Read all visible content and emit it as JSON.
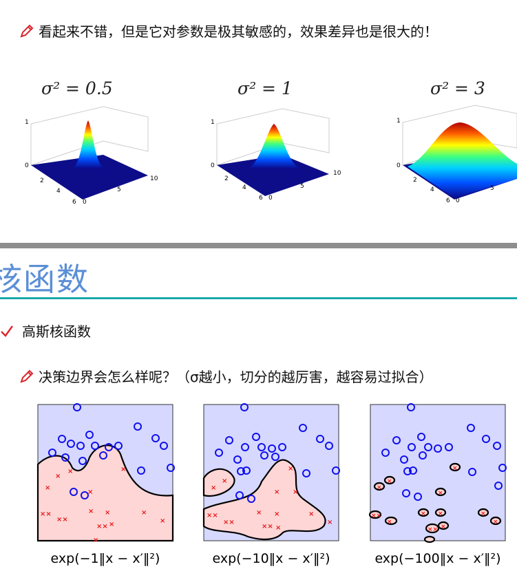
{
  "top_note": "看起来不错，但是它对参数是极其敏感的，效果差异也是很大的！",
  "gaussians": [
    {
      "label": "σ² = 0.5",
      "sigma2": 0.5
    },
    {
      "label": "σ² = 1",
      "sigma2": 1
    },
    {
      "label": "σ² = 3",
      "sigma2": 3
    }
  ],
  "axis_ticks": {
    "z_top": "1",
    "z_bottom": "0",
    "x": [
      "2",
      "4",
      "6"
    ],
    "y": [
      "0",
      "5",
      "10"
    ]
  },
  "section_title": "核函数",
  "bullet_text": "高斯核函数",
  "question_note": "决策边界会怎么样呢？（σ越小，切分的越厉害，越容易过拟合）",
  "decision_panels": [
    {
      "label": "exp(−1‖x − x′‖²)",
      "gamma": 1
    },
    {
      "label": "exp(−10‖x − x′‖²)",
      "gamma": 10
    },
    {
      "label": "exp(−100‖x − x′‖²)",
      "gamma": 100
    }
  ],
  "colors": {
    "blue_region": "#d6d8ff",
    "red_region": "#ffd6d6",
    "circle": "#1010ee",
    "cross": "#e81818",
    "title": "#5b8fd6",
    "rule": "#1aa9ab"
  }
}
